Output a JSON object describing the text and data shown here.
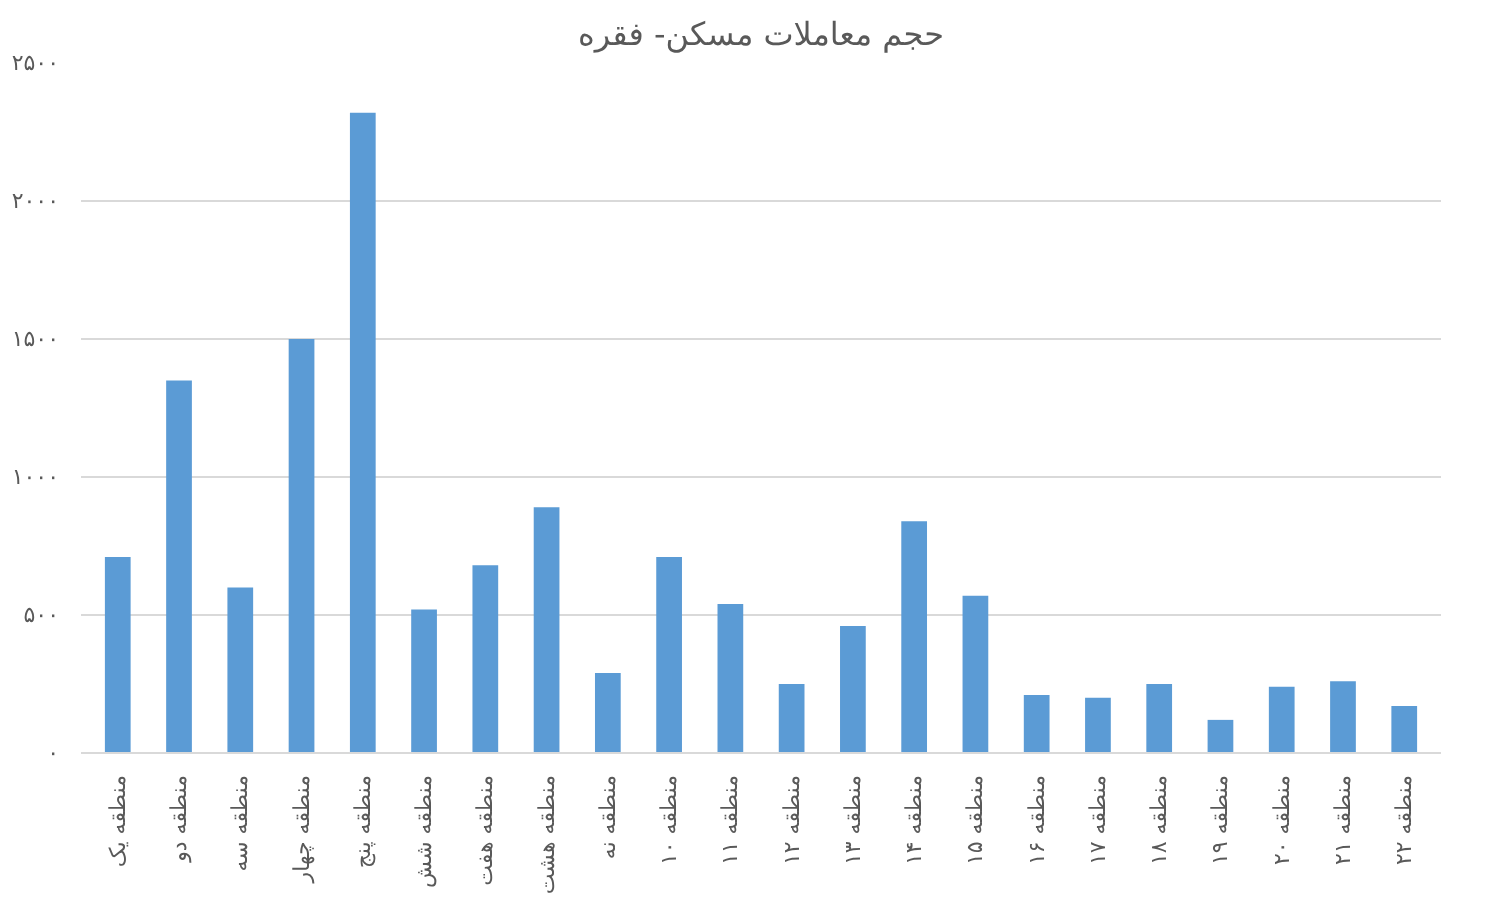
{
  "chart_data": {
    "type": "bar",
    "title": "حجم معاملات مسکن- فقره",
    "categories": [
      "منطقه یک",
      "منطقه دو",
      "منطقه سه",
      "منطقه چهار",
      "منطقه پنج",
      "منطقه شش",
      "منطقه هفت",
      "منطقه هشت",
      "منطقه نه",
      "منطقه ۱۰",
      "منطقه ۱۱",
      "منطقه ۱۲",
      "منطقه ۱۳",
      "منطقه ۱۴",
      "منطقه ۱۵",
      "منطقه ۱۶",
      "منطقه ۱۷",
      "منطقه ۱۸",
      "منطقه ۱۹",
      "منطقه ۲۰",
      "منطقه ۲۱",
      "منطقه ۲۲"
    ],
    "values": [
      710,
      1350,
      600,
      1500,
      2320,
      520,
      680,
      890,
      290,
      710,
      540,
      250,
      460,
      840,
      570,
      210,
      200,
      250,
      120,
      240,
      260,
      170
    ],
    "color": "#5b9bd5",
    "ylim": [
      0,
      2500
    ],
    "yticks": [
      {
        "value": 0,
        "label": "۰"
      },
      {
        "value": 500,
        "label": "۵۰۰"
      },
      {
        "value": 1000,
        "label": "۱۰۰۰"
      },
      {
        "value": 1500,
        "label": "۱۵۰۰"
      },
      {
        "value": 2000,
        "label": "۲۰۰۰"
      },
      {
        "value": 2500,
        "label": "۲۵۰۰"
      }
    ],
    "grid": "y"
  }
}
